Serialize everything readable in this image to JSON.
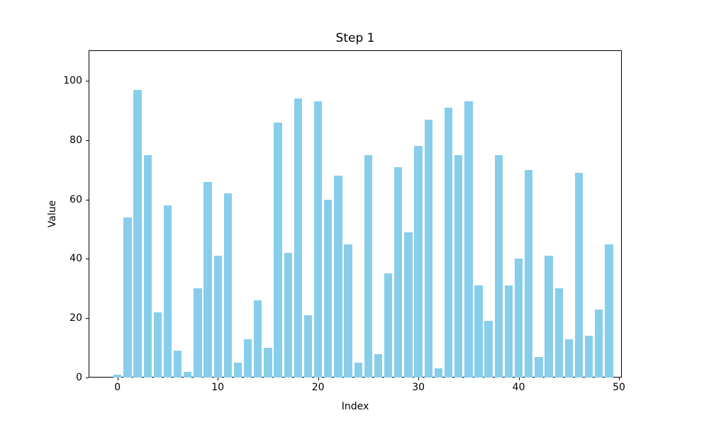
{
  "chart_data": {
    "type": "bar",
    "title": "Step 1",
    "xlabel": "Index",
    "ylabel": "Value",
    "categories": [
      0,
      1,
      2,
      3,
      4,
      5,
      6,
      7,
      8,
      9,
      10,
      11,
      12,
      13,
      14,
      15,
      16,
      17,
      18,
      19,
      20,
      21,
      22,
      23,
      24,
      25,
      26,
      27,
      28,
      29,
      30,
      31,
      32,
      33,
      34,
      35,
      36,
      37,
      38,
      39,
      40,
      41,
      42,
      43,
      44,
      45,
      46,
      47,
      48,
      49
    ],
    "values": [
      1,
      54,
      97,
      75,
      22,
      58,
      9,
      2,
      30,
      66,
      41,
      62,
      5,
      13,
      26,
      10,
      86,
      42,
      94,
      21,
      93,
      60,
      68,
      45,
      5,
      75,
      8,
      35,
      71,
      49,
      78,
      87,
      3,
      91,
      75,
      93,
      31,
      19,
      75,
      31,
      40,
      70,
      7,
      41,
      30,
      13,
      69,
      14,
      23,
      45
    ],
    "xticks": [
      0,
      10,
      20,
      30,
      40,
      50
    ],
    "yticks": [
      0,
      20,
      40,
      60,
      80,
      100
    ],
    "xlim": [
      -2.88,
      50.28
    ],
    "ylim": [
      0,
      110.3
    ],
    "grid": false,
    "legend": null,
    "bar_color": "#87CEEB",
    "text_color": "#000000",
    "background_color": "#ffffff",
    "bar_width_fraction": 0.8
  }
}
